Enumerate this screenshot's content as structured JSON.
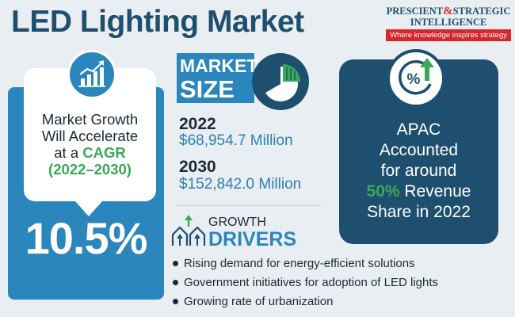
{
  "title": "LED Lighting Market",
  "logo": {
    "line1_a": "PRESCIENT",
    "line1_amp": "&",
    "line1_b": "STRATEGIC",
    "line2": "INTELLIGENCE",
    "tagline": "Where knowledge inspires strategy"
  },
  "cagr": {
    "line1": "Market Growth",
    "line2": "Will Accelerate",
    "line3_prefix": "at a ",
    "line3_highlight": "CAGR",
    "line4": "(2022–2030)",
    "value": "10.5%"
  },
  "market_size": {
    "label_line1": "MARKET",
    "label_line2": "SIZE",
    "entries": [
      {
        "year": "2022",
        "value": "$68,954.7 Million"
      },
      {
        "year": "2030",
        "value": "$152,842.0 Million"
      }
    ]
  },
  "apac": {
    "line1": "APAC",
    "line2": "Accounted",
    "line3": "for around",
    "line4_highlight": "50%",
    "line4_rest": " Revenue",
    "line5": "Share in 2022",
    "icon_symbol": "%"
  },
  "growth_drivers": {
    "label_line1": "GROWTH",
    "label_line2": "DRIVERS",
    "items": [
      "Rising demand for energy-efficient solutions",
      "Government initiatives for adoption of LED lights",
      "Growing rate of urbanization"
    ]
  },
  "colors": {
    "navy": "#1f4f6e",
    "blue": "#2b86bd",
    "green": "#3aa85b",
    "red": "#d9262a",
    "background": "#e9eef2"
  },
  "icons": [
    "growth-chart-icon",
    "pie-chart-icon",
    "percent-arrow-icon",
    "growth-houses-icon"
  ]
}
